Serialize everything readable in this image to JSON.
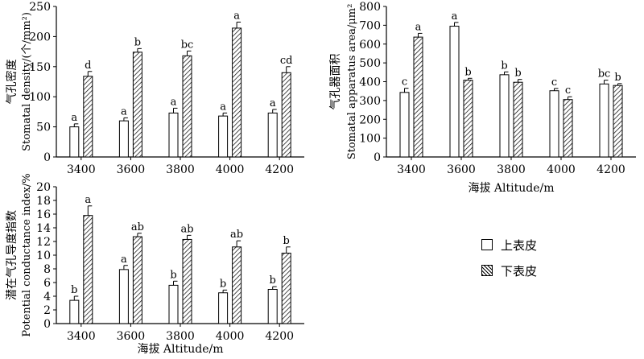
{
  "chart_data": [
    {
      "id": "density",
      "type": "bar",
      "ylabel_cn": "气孔密度",
      "ylabel_en": "Stomatal density/(个/mm²)",
      "xlabel": "",
      "ylim": [
        0,
        250
      ],
      "yticks": [
        0,
        50,
        100,
        150,
        200,
        250
      ],
      "categories": [
        "3400",
        "3600",
        "3800",
        "4000",
        "4200"
      ],
      "series": [
        {
          "name": "上表皮",
          "values": [
            50,
            60,
            73,
            68,
            73
          ],
          "errors": [
            5,
            5,
            8,
            5,
            6
          ],
          "letters": [
            "a",
            "a",
            "a",
            "a",
            "a"
          ]
        },
        {
          "name": "下表皮",
          "values": [
            134,
            174,
            168,
            214,
            140
          ],
          "errors": [
            8,
            6,
            8,
            10,
            10
          ],
          "letters": [
            "d",
            "b",
            "bc",
            "a",
            "cd"
          ]
        }
      ]
    },
    {
      "id": "area",
      "type": "bar",
      "ylabel_cn": "气孔器面积",
      "ylabel_en": "Stomatal apparatus area/μm²",
      "xlabel": "海拔 Altitude/m",
      "ylim": [
        0,
        800
      ],
      "yticks": [
        0,
        100,
        200,
        300,
        400,
        500,
        600,
        700,
        800
      ],
      "categories": [
        "3400",
        "3600",
        "3800",
        "4000",
        "4200"
      ],
      "series": [
        {
          "name": "上表皮",
          "values": [
            343,
            695,
            437,
            352,
            388
          ],
          "errors": [
            22,
            20,
            15,
            12,
            20
          ],
          "letters": [
            "c",
            "a",
            "b",
            "c",
            "bc"
          ]
        },
        {
          "name": "下表皮",
          "values": [
            637,
            408,
            397,
            305,
            380
          ],
          "errors": [
            20,
            10,
            15,
            15,
            10
          ],
          "letters": [
            "a",
            "b",
            "b",
            "c",
            "b"
          ]
        }
      ]
    },
    {
      "id": "conductance",
      "type": "bar",
      "ylabel_cn": "潜在气孔导度指数",
      "ylabel_en": "Potential conductance index/%",
      "xlabel": "海拔 Altitude/m",
      "ylim": [
        0,
        20
      ],
      "yticks": [
        0,
        2,
        4,
        6,
        8,
        10,
        12,
        14,
        16,
        18,
        20
      ],
      "categories": [
        "3400",
        "3600",
        "3800",
        "4000",
        "4200"
      ],
      "series": [
        {
          "name": "上表皮",
          "values": [
            3.4,
            7.9,
            5.6,
            4.5,
            5.0
          ],
          "errors": [
            0.6,
            0.6,
            0.6,
            0.4,
            0.4
          ],
          "letters": [
            "b",
            "a",
            "b",
            "b",
            "b"
          ]
        },
        {
          "name": "下表皮",
          "values": [
            15.8,
            12.7,
            12.3,
            11.2,
            10.3
          ],
          "errors": [
            1.4,
            0.5,
            0.6,
            0.9,
            0.9
          ],
          "letters": [
            "a",
            "ab",
            "ab",
            "ab",
            "b"
          ]
        }
      ]
    }
  ],
  "legend": {
    "items": [
      {
        "label": "上表皮",
        "fill": "open"
      },
      {
        "label": "下表皮",
        "fill": "hatched"
      }
    ]
  }
}
